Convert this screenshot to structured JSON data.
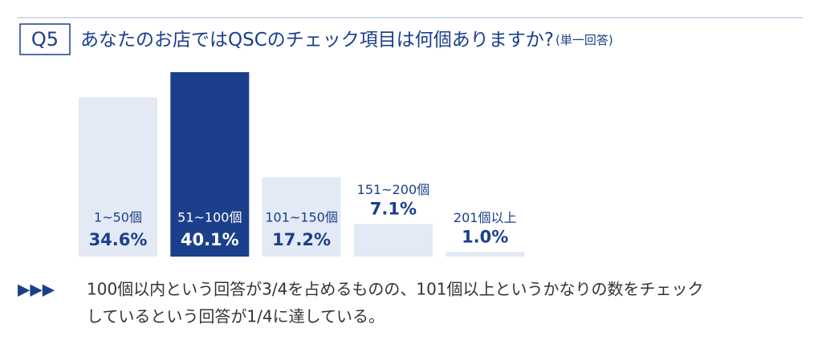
{
  "chart_data": {
    "type": "bar",
    "question_label": "Q5",
    "title": "あなたのお店ではQSCのチェック項目は何個ありますか?",
    "subtitle": "(単一回答)",
    "categories": [
      "1~50個",
      "51~100個",
      "101~150個",
      "151~200個",
      "201個以上"
    ],
    "values": [
      34.6,
      40.1,
      17.2,
      7.1,
      1.0
    ],
    "value_labels": [
      "34.6%",
      "40.1%",
      "17.2%",
      "7.1%",
      "1.0%"
    ],
    "colors": [
      "#e3e9f5",
      "#1b3f8b",
      "#e3e9f5",
      "#e3e9f5",
      "#e3e9f5"
    ],
    "note_marker": "▶▶▶",
    "note": [
      "100個以内という回答が3/4を占めるものの、101個以上というかなりの数をチェック",
      "しているという回答が1/4に達している。"
    ]
  }
}
